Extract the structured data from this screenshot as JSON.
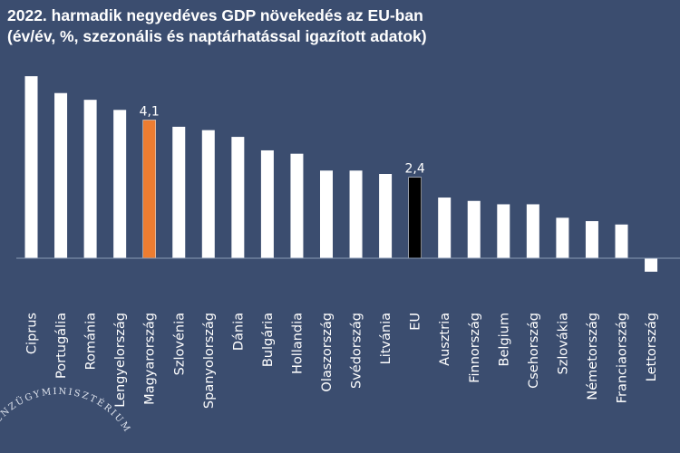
{
  "chart_data": {
    "type": "bar",
    "title": "2022. harmadik negyedéves GDP növekedés az EU-ban",
    "subtitle": "(év/év, %, szezonális és naptárhatással igazított adatok)",
    "categories": [
      "Ciprus",
      "Portugália",
      "Románia",
      "Lengyelország",
      "Magyarország",
      "Szlovénia",
      "Spanyolország",
      "Dánia",
      "Bulgária",
      "Hollandia",
      "Olaszország",
      "Svédország",
      "Litvánia",
      "EU",
      "Ausztria",
      "Finnország",
      "Belgium",
      "Csehország",
      "Szlovákia",
      "Németország",
      "Franciaország",
      "Lettország"
    ],
    "values": [
      5.4,
      4.9,
      4.7,
      4.4,
      4.1,
      3.9,
      3.8,
      3.6,
      3.2,
      3.1,
      2.6,
      2.6,
      2.5,
      2.4,
      1.8,
      1.7,
      1.6,
      1.6,
      1.2,
      1.1,
      1.0,
      -0.4
    ],
    "data_labels": {
      "Magyarország": "4,1",
      "EU": "2,4"
    },
    "highlight_colors": {
      "Magyarország": "#ed7d31",
      "EU": "#000000"
    },
    "default_color": "#ffffff",
    "background": "#3b4d6f",
    "grid": false,
    "ylim": [
      -0.5,
      5.5
    ]
  },
  "logo_text": "PÉNZÜGYMINISZTÉRIUM"
}
